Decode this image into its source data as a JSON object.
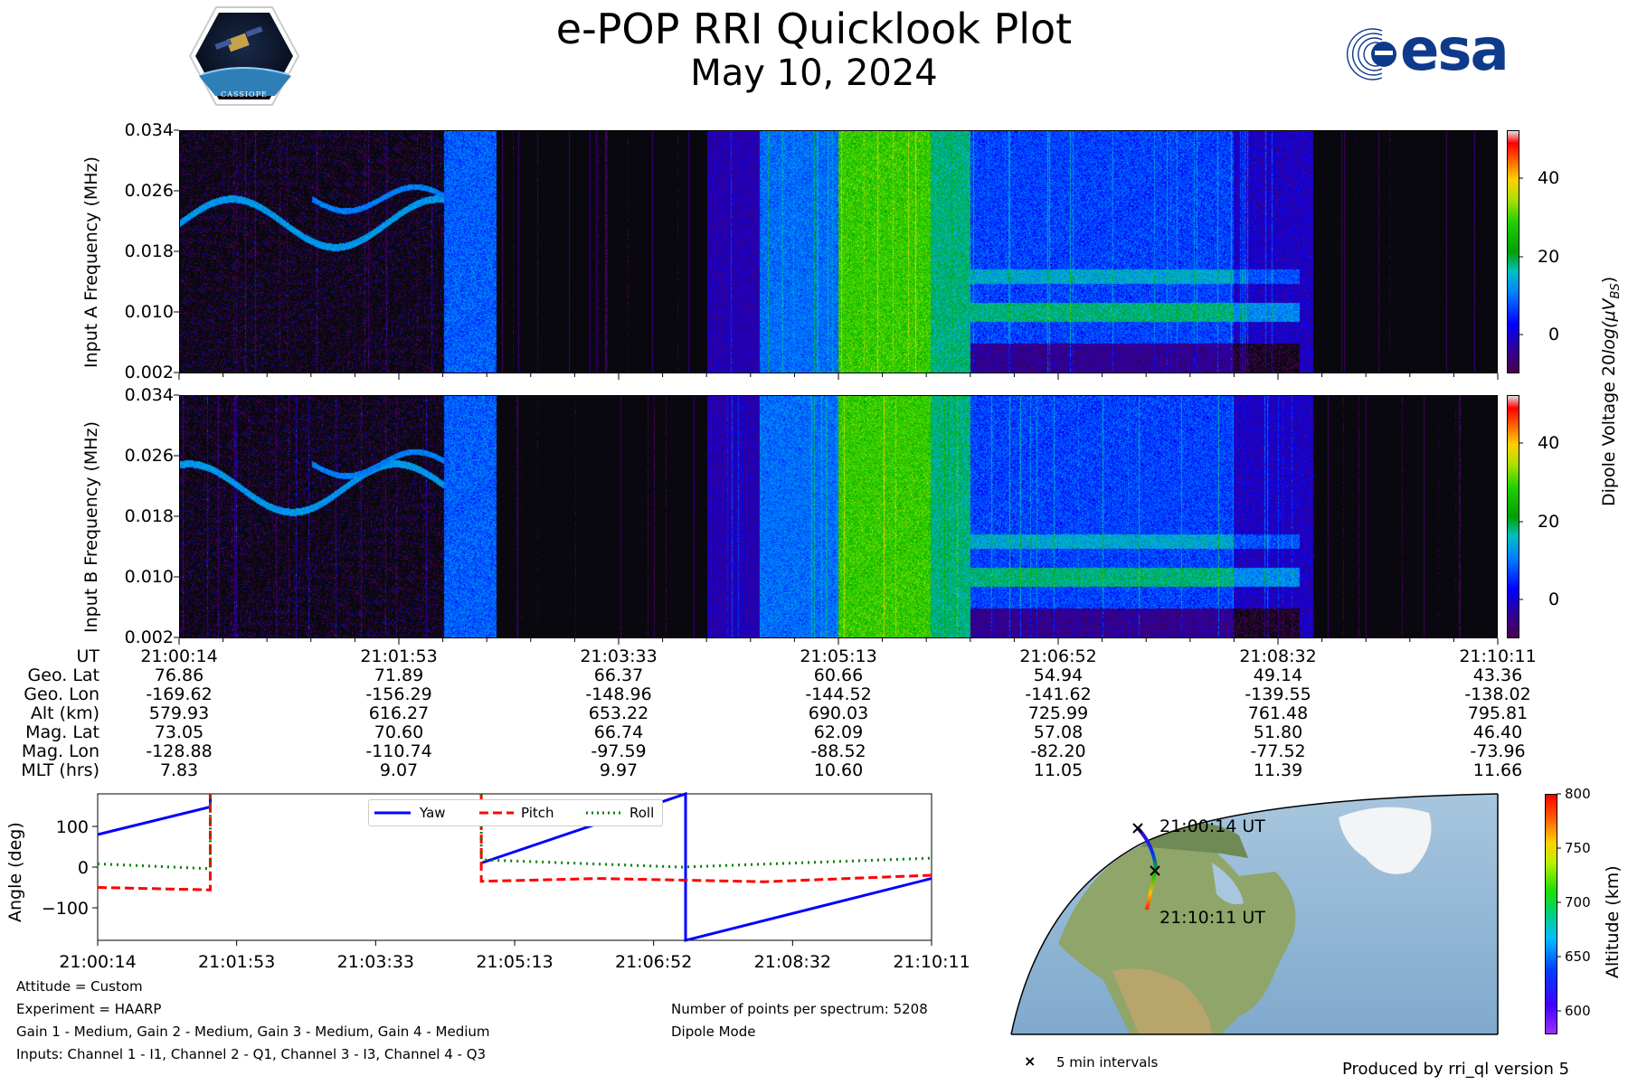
{
  "header": {
    "title": "e-POP RRI Quicklook Plot",
    "date": "May 10, 2024",
    "cassiope_logo_text": "CASSIOPE",
    "esa_logo_text": "esa"
  },
  "spectrogram": {
    "panels": [
      {
        "ylabel": "Input A Frequency (MHz)"
      },
      {
        "ylabel": "Input B Frequency (MHz)"
      }
    ],
    "yticks": [
      "0.034",
      "0.026",
      "0.018",
      "0.010",
      "0.002"
    ],
    "colorbar_ticks": [
      "40",
      "20",
      "0"
    ],
    "colorbar_range": [
      -10,
      52
    ],
    "colorbar_label": "Dipole Voltage 20log(μV_BS)",
    "colorbar_label_main": "Dipole Voltage 20",
    "colorbar_label_italic": "log(μV",
    "colorbar_label_sub": "BS",
    "colorbar_label_end": ")"
  },
  "ephemeris": {
    "labels": [
      "UT",
      "Geo. Lat",
      "Geo. Lon",
      "Alt (km)",
      "Mag. Lat",
      "Mag. Lon",
      "MLT (hrs)"
    ],
    "columns": [
      [
        "21:00:14",
        "76.86",
        "-169.62",
        "579.93",
        "73.05",
        "-128.88",
        "7.83"
      ],
      [
        "21:01:53",
        "71.89",
        "-156.29",
        "616.27",
        "70.60",
        "-110.74",
        "9.07"
      ],
      [
        "21:03:33",
        "66.37",
        "-148.96",
        "653.22",
        "66.74",
        "-97.59",
        "9.97"
      ],
      [
        "21:05:13",
        "60.66",
        "-144.52",
        "690.03",
        "62.09",
        "-88.52",
        "10.60"
      ],
      [
        "21:06:52",
        "54.94",
        "-141.62",
        "725.99",
        "57.08",
        "-82.20",
        "11.05"
      ],
      [
        "21:08:32",
        "49.14",
        "-139.55",
        "761.48",
        "51.80",
        "-77.52",
        "11.39"
      ],
      [
        "21:10:11",
        "43.36",
        "-138.02",
        "795.81",
        "46.40",
        "-73.96",
        "11.66"
      ]
    ]
  },
  "chart_data": [
    {
      "type": "heatmap",
      "ylabel": "Input A Frequency (MHz)",
      "ylim": [
        0.002,
        0.034
      ],
      "yticks": [
        0.034,
        0.026,
        0.018,
        0.01,
        0.002
      ],
      "xticks": [
        "21:00:14",
        "21:01:53",
        "21:03:33",
        "21:05:13",
        "21:06:52",
        "21:08:32",
        "21:10:11"
      ],
      "colorbar": {
        "label": "Dipole Voltage 20log(μV_BS)",
        "ticks": [
          40,
          20,
          0
        ],
        "range": [
          -10,
          52
        ]
      }
    },
    {
      "type": "heatmap",
      "ylabel": "Input B Frequency (MHz)",
      "ylim": [
        0.002,
        0.034
      ],
      "yticks": [
        0.034,
        0.026,
        0.018,
        0.01,
        0.002
      ],
      "xticks": [
        "21:00:14",
        "21:01:53",
        "21:03:33",
        "21:05:13",
        "21:06:52",
        "21:08:32",
        "21:10:11"
      ],
      "colorbar": {
        "label": "Dipole Voltage 20log(μV_BS)",
        "ticks": [
          40,
          20,
          0
        ],
        "range": [
          -10,
          52
        ]
      }
    },
    {
      "type": "line",
      "ylabel": "Angle (deg)",
      "ylim": [
        -180,
        180
      ],
      "yticks": [
        100,
        0,
        -100
      ],
      "xticks": [
        "21:00:14",
        "21:01:53",
        "21:03:33",
        "21:05:13",
        "21:06:52",
        "21:08:32",
        "21:10:11"
      ],
      "xlim_minutes": [
        0,
        10
      ],
      "legend": "top-center",
      "series": [
        {
          "name": "Yaw",
          "color": "#0000ff",
          "style": "solid",
          "x": [
            0,
            1.35,
            1.35,
            1.35,
            1.35,
            4.6,
            7.05,
            7.05,
            10
          ],
          "y": [
            80,
            148,
            180,
            null,
            null,
            10,
            180,
            -180,
            -28
          ]
        },
        {
          "name": "Pitch",
          "color": "#ff0000",
          "style": "dashed",
          "x": [
            0,
            1.35,
            1.35,
            1.35,
            4.6,
            4.6,
            6,
            8,
            10
          ],
          "y": [
            -50,
            -56,
            180,
            null,
            180,
            -35,
            -28,
            -36,
            -20
          ]
        },
        {
          "name": "Roll",
          "color": "#008000",
          "style": "dotted",
          "x": [
            0,
            1.35,
            1.35,
            1.35,
            4.6,
            4.6,
            7,
            10
          ],
          "y": [
            8,
            -4,
            180,
            null,
            180,
            18,
            0,
            22
          ]
        }
      ]
    },
    {
      "type": "scatter",
      "title": "",
      "ylabel": "Altitude (km)",
      "colorbar": {
        "ticks": [
          800,
          750,
          700,
          650,
          600
        ],
        "range": [
          580,
          800
        ]
      },
      "labels": [
        "21:00:14 UT",
        "21:10:11 UT"
      ],
      "legend": "5 min intervals"
    }
  ],
  "attitude": {
    "ylabel": "Angle (deg)",
    "yticks": [
      "100",
      "0",
      "−100"
    ],
    "xticks": [
      "21:00:14",
      "21:01:53",
      "21:03:33",
      "21:05:13",
      "21:06:52",
      "21:08:32",
      "21:10:11"
    ],
    "legend": [
      "Yaw",
      "Pitch",
      "Roll"
    ]
  },
  "map": {
    "start_label": "21:00:14 UT",
    "end_label": "21:10:11 UT",
    "colorbar_ticks": [
      "800",
      "750",
      "700",
      "650",
      "600"
    ],
    "colorbar_label": "Altitude (km)",
    "legend_marker": "×",
    "legend_text": "5 min intervals"
  },
  "notes": {
    "left": [
      "Attitude = Custom",
      "Experiment = HAARP",
      "Gain 1 - Medium, Gain 2 - Medium, Gain 3 - Medium, Gain 4 - Medium",
      "Inputs: Channel 1 - I1, Channel 2 - Q1, Channel 3 - I3, Channel 4 - Q3"
    ],
    "right": [
      "Number of points per spectrum: 5208",
      "Dipole Mode"
    ],
    "footer": "Produced by rri_ql version 5"
  }
}
